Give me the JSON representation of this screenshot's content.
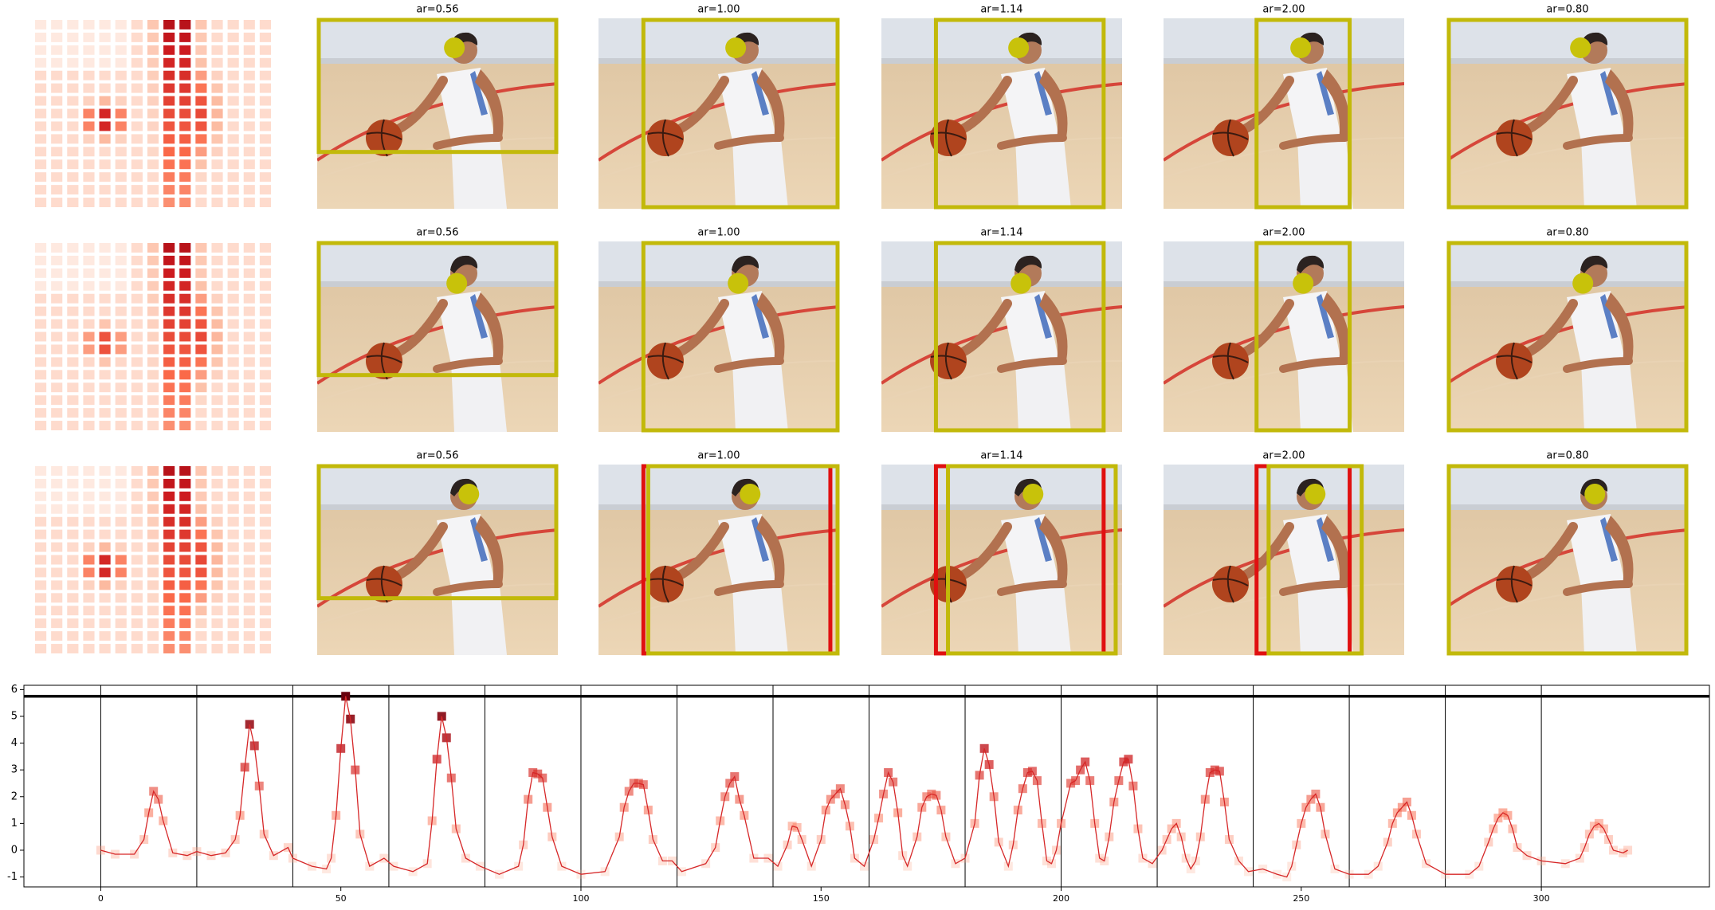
{
  "panel_titles": [
    [
      "ar=0.56",
      "ar=1.00",
      "ar=1.14",
      "ar=2.00",
      "ar=0.80"
    ],
    [
      "ar=0.56",
      "ar=1.00",
      "ar=1.14",
      "ar=2.00",
      "ar=0.80"
    ],
    [
      "ar=0.56",
      "ar=1.00",
      "ar=1.14",
      "ar=2.00",
      "ar=0.80"
    ]
  ],
  "chart_data": {
    "type": "line",
    "color": "#d62728",
    "marker": "square",
    "marker_cmap": "Reds",
    "x": [
      0,
      3,
      7,
      9,
      10,
      11,
      12,
      13,
      15,
      18,
      20,
      23,
      26,
      28,
      29,
      30,
      31,
      32,
      33,
      34,
      36,
      39,
      40,
      44,
      47,
      48,
      49,
      50,
      51,
      52,
      53,
      54,
      56,
      59,
      61,
      65,
      68,
      69,
      70,
      71,
      72,
      73,
      74,
      76,
      79,
      83,
      87,
      88,
      89,
      90,
      91,
      92,
      93,
      94,
      96,
      100,
      105,
      108,
      109,
      110,
      111,
      112,
      113,
      114,
      115,
      117,
      119,
      121,
      126,
      128,
      129,
      130,
      131,
      132,
      133,
      134,
      136,
      139,
      141,
      143,
      144,
      145,
      146,
      148,
      150,
      151,
      152,
      153,
      154,
      155,
      156,
      157,
      159,
      161,
      162,
      163,
      164,
      165,
      166,
      167,
      168,
      170,
      171,
      172,
      173,
      174,
      175,
      176,
      178,
      180,
      182,
      183,
      184,
      185,
      186,
      187,
      189,
      190,
      191,
      192,
      193,
      194,
      195,
      196,
      197,
      198,
      199,
      200,
      202,
      203,
      204,
      205,
      206,
      207,
      208,
      209,
      210,
      211,
      212,
      213,
      214,
      215,
      216,
      217,
      219,
      221,
      222,
      223,
      224,
      225,
      226,
      227,
      228,
      229,
      230,
      231,
      232,
      233,
      234,
      235,
      237,
      239,
      242,
      245,
      247,
      248,
      249,
      250,
      251,
      252,
      253,
      254,
      255,
      257,
      260,
      264,
      266,
      268,
      269,
      270,
      271,
      272,
      273,
      274,
      276,
      280,
      285,
      287,
      289,
      290,
      291,
      292,
      293,
      294,
      295,
      297,
      300,
      305,
      308,
      309,
      310,
      311,
      312,
      313,
      314,
      315,
      317,
      318
    ],
    "values": [
      0,
      -0.15,
      -0.15,
      0.4,
      1.4,
      2.2,
      1.9,
      1.1,
      -0.1,
      -0.2,
      -0.05,
      -0.2,
      -0.1,
      0.4,
      1.3,
      3.1,
      4.7,
      3.9,
      2.4,
      0.6,
      -0.2,
      0.1,
      -0.3,
      -0.6,
      -0.7,
      -0.3,
      1.3,
      3.8,
      5.75,
      4.9,
      3.0,
      0.6,
      -0.6,
      -0.3,
      -0.6,
      -0.8,
      -0.5,
      1.1,
      3.4,
      5.0,
      4.2,
      2.7,
      0.8,
      -0.3,
      -0.6,
      -0.9,
      -0.6,
      0.2,
      1.9,
      2.9,
      2.85,
      2.7,
      1.6,
      0.5,
      -0.6,
      -0.9,
      -0.8,
      0.5,
      1.6,
      2.2,
      2.5,
      2.5,
      2.45,
      1.5,
      0.4,
      -0.4,
      -0.4,
      -0.8,
      -0.5,
      0.1,
      1.1,
      2.0,
      2.5,
      2.75,
      1.9,
      1.3,
      -0.3,
      -0.3,
      -0.6,
      0.2,
      0.9,
      0.85,
      0.4,
      -0.6,
      0.4,
      1.5,
      1.9,
      2.1,
      2.3,
      1.7,
      0.9,
      -0.3,
      -0.6,
      0.4,
      1.2,
      2.1,
      2.9,
      2.55,
      1.4,
      -0.2,
      -0.6,
      0.5,
      1.6,
      2.0,
      2.1,
      2.05,
      1.5,
      0.5,
      -0.5,
      -0.3,
      1.0,
      2.8,
      3.8,
      3.2,
      2.0,
      0.3,
      -0.6,
      0.2,
      1.5,
      2.3,
      2.9,
      2.95,
      2.6,
      1.0,
      -0.4,
      -0.5,
      0.0,
      1.0,
      2.5,
      2.6,
      3.0,
      3.3,
      2.6,
      1.0,
      -0.3,
      -0.4,
      0.5,
      1.8,
      2.6,
      3.3,
      3.4,
      2.4,
      0.8,
      -0.3,
      -0.5,
      0.0,
      0.4,
      0.8,
      1.0,
      0.5,
      -0.3,
      -0.7,
      -0.4,
      0.5,
      1.9,
      2.9,
      3.0,
      2.95,
      1.8,
      0.4,
      -0.4,
      -0.8,
      -0.7,
      -0.9,
      -1.0,
      -0.6,
      0.2,
      1.0,
      1.6,
      1.9,
      2.1,
      1.6,
      0.6,
      -0.7,
      -0.9,
      -0.9,
      -0.6,
      0.3,
      1.0,
      1.4,
      1.6,
      1.8,
      1.3,
      0.6,
      -0.5,
      -0.9,
      -0.9,
      -0.6,
      0.3,
      0.8,
      1.2,
      1.4,
      1.3,
      0.8,
      0.1,
      -0.2,
      -0.4,
      -0.5,
      -0.3,
      0.1,
      0.6,
      0.9,
      1.0,
      0.8,
      0.4,
      0.0,
      -0.1,
      0
    ],
    "hline": 5.75,
    "vlines": [
      0,
      20,
      40,
      60,
      80,
      100,
      120,
      140,
      160,
      180,
      200,
      220,
      240,
      260,
      280,
      300
    ],
    "xlim": [
      -16,
      335
    ],
    "ylim": [
      -1.37,
      6.16
    ],
    "xticks": [
      0,
      50,
      100,
      150,
      200,
      250,
      300
    ],
    "yticks": [
      -1,
      0,
      1,
      2,
      3,
      4,
      5,
      6
    ]
  }
}
